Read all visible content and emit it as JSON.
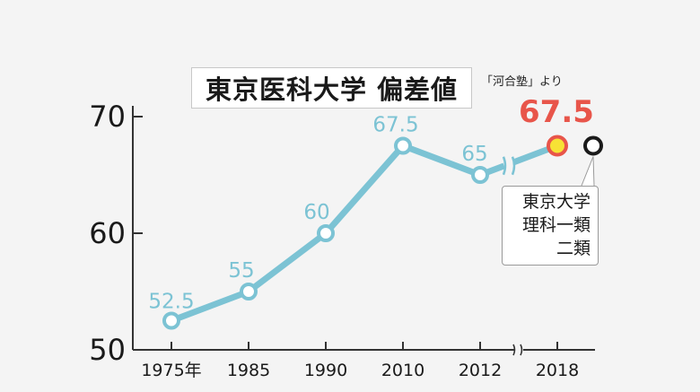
{
  "chart_data": {
    "type": "line",
    "title": "東京医科大学 偏差値",
    "source_note": "「河合塾」より",
    "categories": [
      "1975年",
      "1985",
      "1990",
      "2010",
      "2012",
      "2018"
    ],
    "series": [
      {
        "values": [
          52.5,
          55,
          60,
          67.5,
          65,
          67.5
        ]
      }
    ],
    "data_labels": [
      "52.5",
      "55",
      "60",
      "67.5",
      "65",
      "67.5"
    ],
    "highlight_label": "67.5",
    "y_ticks": [
      "50",
      "60",
      "70"
    ],
    "ylim": [
      50,
      70
    ],
    "grid": false,
    "comparison": {
      "value": 67.5,
      "lines": [
        "東京大学",
        "理科一類",
        "二類"
      ]
    },
    "colors": {
      "line": "#7cc3d4",
      "marker_fill": "#ffffff",
      "highlight_fill": "#f7e235",
      "highlight_stroke": "#e8554a",
      "highlight_text": "#e8554a",
      "comparison_marker": "#1a1a1a",
      "axis": "#333333",
      "data_label": "#7cc3d4"
    }
  }
}
